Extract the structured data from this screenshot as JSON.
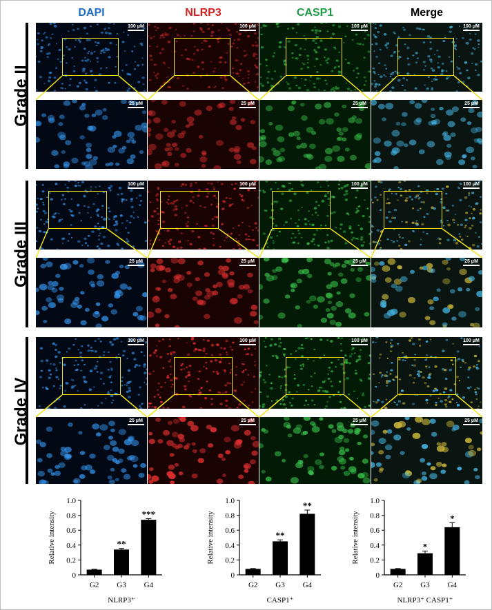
{
  "columns": [
    {
      "label": "DAPI",
      "color": "#1f6fc7"
    },
    {
      "label": "NLRP3",
      "color": "#d21f1f"
    },
    {
      "label": "CASP1",
      "color": "#1c9b45"
    },
    {
      "label": "Merge",
      "color": "#000000"
    }
  ],
  "grades": [
    "Grade II",
    "Grade III",
    "Grade IV"
  ],
  "scale_bars": {
    "overview": "100 μM",
    "zoom": "25 μM"
  },
  "charts": [
    {
      "xlabel": "NLRP3⁺",
      "ylabel": "Relative intensity"
    },
    {
      "xlabel": "CASP1⁺",
      "ylabel": "Relative intensity"
    },
    {
      "xlabel": "NLRP3⁺ CASP1⁺",
      "ylabel": "Relative intensity"
    }
  ],
  "chart_data": [
    {
      "type": "bar",
      "categories": [
        "G2",
        "G3",
        "G4"
      ],
      "values": [
        0.07,
        0.34,
        0.74
      ],
      "errors": [
        0.005,
        0.015,
        0.015
      ],
      "significance": [
        "",
        "**",
        "***"
      ],
      "xlabel": "NLRP3⁺",
      "ylabel": "Relative intensity",
      "ylim": [
        0,
        1.0
      ],
      "yticks": [
        0,
        0.2,
        0.4,
        0.6,
        0.8,
        1.0
      ]
    },
    {
      "type": "bar",
      "categories": [
        "G2",
        "G3",
        "G4"
      ],
      "values": [
        0.08,
        0.45,
        0.82
      ],
      "errors": [
        0.005,
        0.02,
        0.05
      ],
      "significance": [
        "",
        "**",
        "**"
      ],
      "xlabel": "CASP1⁺",
      "ylabel": "Relative intensity",
      "ylim": [
        0,
        1.0
      ],
      "yticks": [
        0,
        0.2,
        0.4,
        0.6,
        0.8,
        1.0
      ]
    },
    {
      "type": "bar",
      "categories": [
        "G2",
        "G3",
        "G4"
      ],
      "values": [
        0.08,
        0.29,
        0.64
      ],
      "errors": [
        0.005,
        0.03,
        0.06
      ],
      "significance": [
        "",
        "*",
        "*"
      ],
      "xlabel": "NLRP3⁺ CASP1⁺",
      "ylabel": "Relative intensity",
      "ylim": [
        0,
        1.0
      ],
      "yticks": [
        0,
        0.2,
        0.4,
        0.6,
        0.8,
        1.0
      ]
    }
  ],
  "colors": {
    "frame_border": "#bdbdbd",
    "zoom_box": "#f2e417",
    "bar": "#000000"
  }
}
